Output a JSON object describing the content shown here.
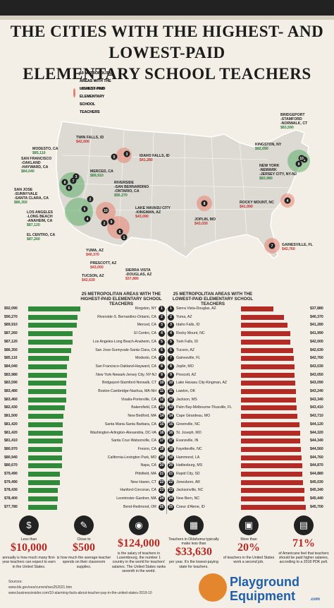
{
  "title": {
    "line1": "THE CITIES WITH THE HIGHEST- AND LOWEST-PAID",
    "line2": "ELEMENTARY SCHOOL TEACHERS"
  },
  "legend": {
    "highest": "10 METROPOLITAN AREAS WITH THE HIGHEST-PAID ELEMENTARY SCHOOL TEACHERS",
    "lowest": "10 METROPOLITAN AREAS WITH THE LOWEST-PAID ELEMENTARY SCHOOL TEACHERS",
    "green": "#5fae6a",
    "red": "#e8826f"
  },
  "map_labels": {
    "modesto": {
      "name": "MODESTO, CA",
      "value": "$85,110"
    },
    "twin_falls": {
      "name": "TWIN FALLS, ID",
      "value": "$42,000"
    },
    "idaho_falls": {
      "name": "IDAHO FALLS, ID",
      "value": "$41,280"
    },
    "san_francisco": {
      "name": "SAN FRANCISCO\n-OAKLAND\n-HAYWARD, CA",
      "value": "$84,040"
    },
    "merced": {
      "name": "MERCED, CA",
      "value": "$89,910"
    },
    "riverside": {
      "name": "RIVERSIDE\n-SAN BERNARDINO\n-ONTARIO, CA",
      "value": "$90,270"
    },
    "san_jose": {
      "name": "SAN JOSE\n-SUNNYVALE\n-SANTA CLARA, CA",
      "value": "$86,350"
    },
    "los_angeles": {
      "name": "LOS ANGELES\n-LONG BEACH\n-ANAHEIM, CA",
      "value": "$87,120"
    },
    "el_centro": {
      "name": "EL CENTRO, CA",
      "value": "$87,260"
    },
    "lake_havasu": {
      "name": "LAKE HAVASU CITY\n-KINGMAN, AZ",
      "value": "$43,090"
    },
    "yuma": {
      "name": "YUMA, AZ",
      "value": "$40,370"
    },
    "prescott": {
      "name": "PRESCOTT, AZ",
      "value": "$43,050"
    },
    "tucson": {
      "name": "TUCSON, AZ",
      "value": "$42,630"
    },
    "sierra_vista": {
      "name": "SIERRA VISTA\n-DOUGLAS, AZ",
      "value": "$37,880"
    },
    "joplin": {
      "name": "JOPLIN, MO",
      "value": "$43,030"
    },
    "rocky_mount": {
      "name": "ROCKY MOUNT, NC",
      "value": "$41,990"
    },
    "gainesville": {
      "name": "GAINESVILLE, FL",
      "value": "$42,760"
    },
    "bridgeport": {
      "name": "BRIDGEPORT\n-STAMFORD\n-NORWALK, CT",
      "value": "$83,590"
    },
    "kingston": {
      "name": "KINGSTON, NY",
      "value": "$92,090"
    },
    "new_york": {
      "name": "NEW YORK\n-NEWARK\n-JERSEY CITY, NY-NJ",
      "value": "$83,980"
    }
  },
  "table_titles": {
    "left": "25 METROPOLITAN AREAS WITH THE HIGHEST-PAID ELEMENTARY SCHOOL TEACHERS",
    "right": "25 METROPOLITAN AREAS WITH THE LOWEST-PAID ELEMENTARY SCHOOL TEACHERS"
  },
  "chart_data": [
    {
      "type": "bar",
      "title": "25 METROPOLITAN AREAS WITH THE HIGHEST-PAID ELEMENTARY SCHOOL TEACHERS",
      "color": "#2f8a3a",
      "categories": [
        "Kingston, NY",
        "Riverside-S. Bernardino-Ontario, CA",
        "Merced, CA",
        "El Centro, CA",
        "Los Angeles-Long Beach-Anaheim, CA",
        "San Jose-Sunnyvale-Santa Clara, CA",
        "Modesto, CA",
        "San Francisco-Oakland-Hayward, CA",
        "New York-Newark-Jersey City, NY-NJ",
        "Bridgeport-Stamford-Norwalk, CT",
        "Boston-Cambridge-Nashua, MA-NH",
        "Visalia-Porterville, CA",
        "Bakersfield, CA",
        "New Bedford, MA",
        "Santa Maria-Santa Barbara, CA",
        "Washington-Arlington-Alexandria, DC-VA",
        "Santa Cruz-Watsonville, CA",
        "Fresno, CA",
        "California-Lexington Park, MD",
        "Napa, CA",
        "Pittsfield, MA",
        "New Haven, CT",
        "Hanford-Corcoran, CA",
        "Leominster-Gardner, MA",
        "Bend-Redmond, OR"
      ],
      "labels": [
        "$92,090",
        "$90,270",
        "$89,910",
        "$87,260",
        "$87,120",
        "$86,350",
        "$85,110",
        "$84,040",
        "$83,980",
        "$83,590",
        "$83,480",
        "$83,460",
        "$82,430",
        "$81,500",
        "$81,420",
        "$81,420",
        "$81,410",
        "$80,970",
        "$80,940",
        "$80,670",
        "$79,490",
        "$79,490",
        "$78,430",
        "$78,400",
        "$77,780"
      ],
      "values": [
        92090,
        90270,
        89910,
        87260,
        87120,
        86350,
        85110,
        84040,
        83980,
        83590,
        83480,
        83460,
        82430,
        81500,
        81420,
        81420,
        81410,
        80970,
        80940,
        80670,
        79490,
        79490,
        78430,
        78400,
        77780
      ]
    },
    {
      "type": "bar",
      "title": "25 METROPOLITAN AREAS WITH THE LOWEST-PAID ELEMENTARY SCHOOL TEACHERS",
      "color": "#b32b24",
      "categories": [
        "Sierra Vista-Douglas, AZ",
        "Yuma, AZ",
        "Idaho Falls, ID",
        "Rocky Mount, NC",
        "Twin Falls, ID",
        "Tucson, AZ",
        "Gainesville, FL",
        "Joplin, MO",
        "Prescott, AZ",
        "Lake Havasu City-Kingman, AZ",
        "Lawton, OK",
        "Jackson, MS",
        "Palm Bay-Melbourne-Titusville, FL",
        "Cape Girardeau, MO",
        "Greenville, NC",
        "St. Joseph, MO",
        "Evansville, IN",
        "Fayetteville, NC",
        "Hammond, LA",
        "Hattiesburg, MS",
        "Rapid City, SD",
        "Jonesboro, AR",
        "Jacksonville, NC",
        "New Bern, NC",
        "Coeur d'Alene, ID"
      ],
      "labels": [
        "$37,880",
        "$40,370",
        "$41,280",
        "$41,990",
        "$42,000",
        "$42,630",
        "$42,760",
        "$43,030",
        "$43,050",
        "$43,090",
        "$43,240",
        "$43,340",
        "$43,410",
        "$43,710",
        "$44,120",
        "$44,320",
        "$44,340",
        "$44,560",
        "$44,760",
        "$44,870",
        "$44,880",
        "$45,030",
        "$45,340",
        "$45,440",
        "$45,700"
      ],
      "values": [
        37880,
        40370,
        41280,
        41990,
        42000,
        42630,
        42760,
        43030,
        43050,
        43090,
        43240,
        43340,
        43410,
        43710,
        44120,
        44320,
        44340,
        44560,
        44760,
        44870,
        44880,
        45030,
        45340,
        45440,
        45700
      ]
    }
  ],
  "facts": [
    {
      "icon": "money-icon",
      "pre": "Less than",
      "big": "$10,000",
      "post": "annually is how much many first-year teachers can expect to earn in the United States."
    },
    {
      "icon": "compass-icon",
      "pre": "Close to",
      "big": "$500",
      "post": "is how much the average teacher spends on their classroom supplies."
    },
    {
      "icon": "piggy-bank-icon",
      "pre": "",
      "big": "$124,000",
      "post": "is the salary of teachers in Luxembourg, the number 1 country in the world for teachers' salaries. The United States ranks seventh in the world."
    },
    {
      "icon": "teacher-board-icon",
      "pre": "Teachers in Oklahoma typically make less than",
      "big": "$33,630",
      "post": "per year. It's the lowest-paying state for teachers."
    },
    {
      "icon": "briefcase-icon",
      "pre": "More than",
      "big": "20%",
      "post": "of teachers in the United States work a second job."
    },
    {
      "icon": "classroom-icon",
      "pre": "",
      "big": "71%",
      "post": "of Americans feel that teachers should be paid higher salaries, according to a 2018 PDK poll."
    }
  ],
  "sources": {
    "label": "Sources:",
    "lines": [
      "www.bls.gov/oes/current/oes252021.htm",
      "www.businessinsider.com/10-alarming-facts-about-teacher-pay-in-the-united-states-2019-10"
    ]
  },
  "logo": {
    "line1": "Playground",
    "line2": "Equipment",
    "suffix": ".com"
  }
}
